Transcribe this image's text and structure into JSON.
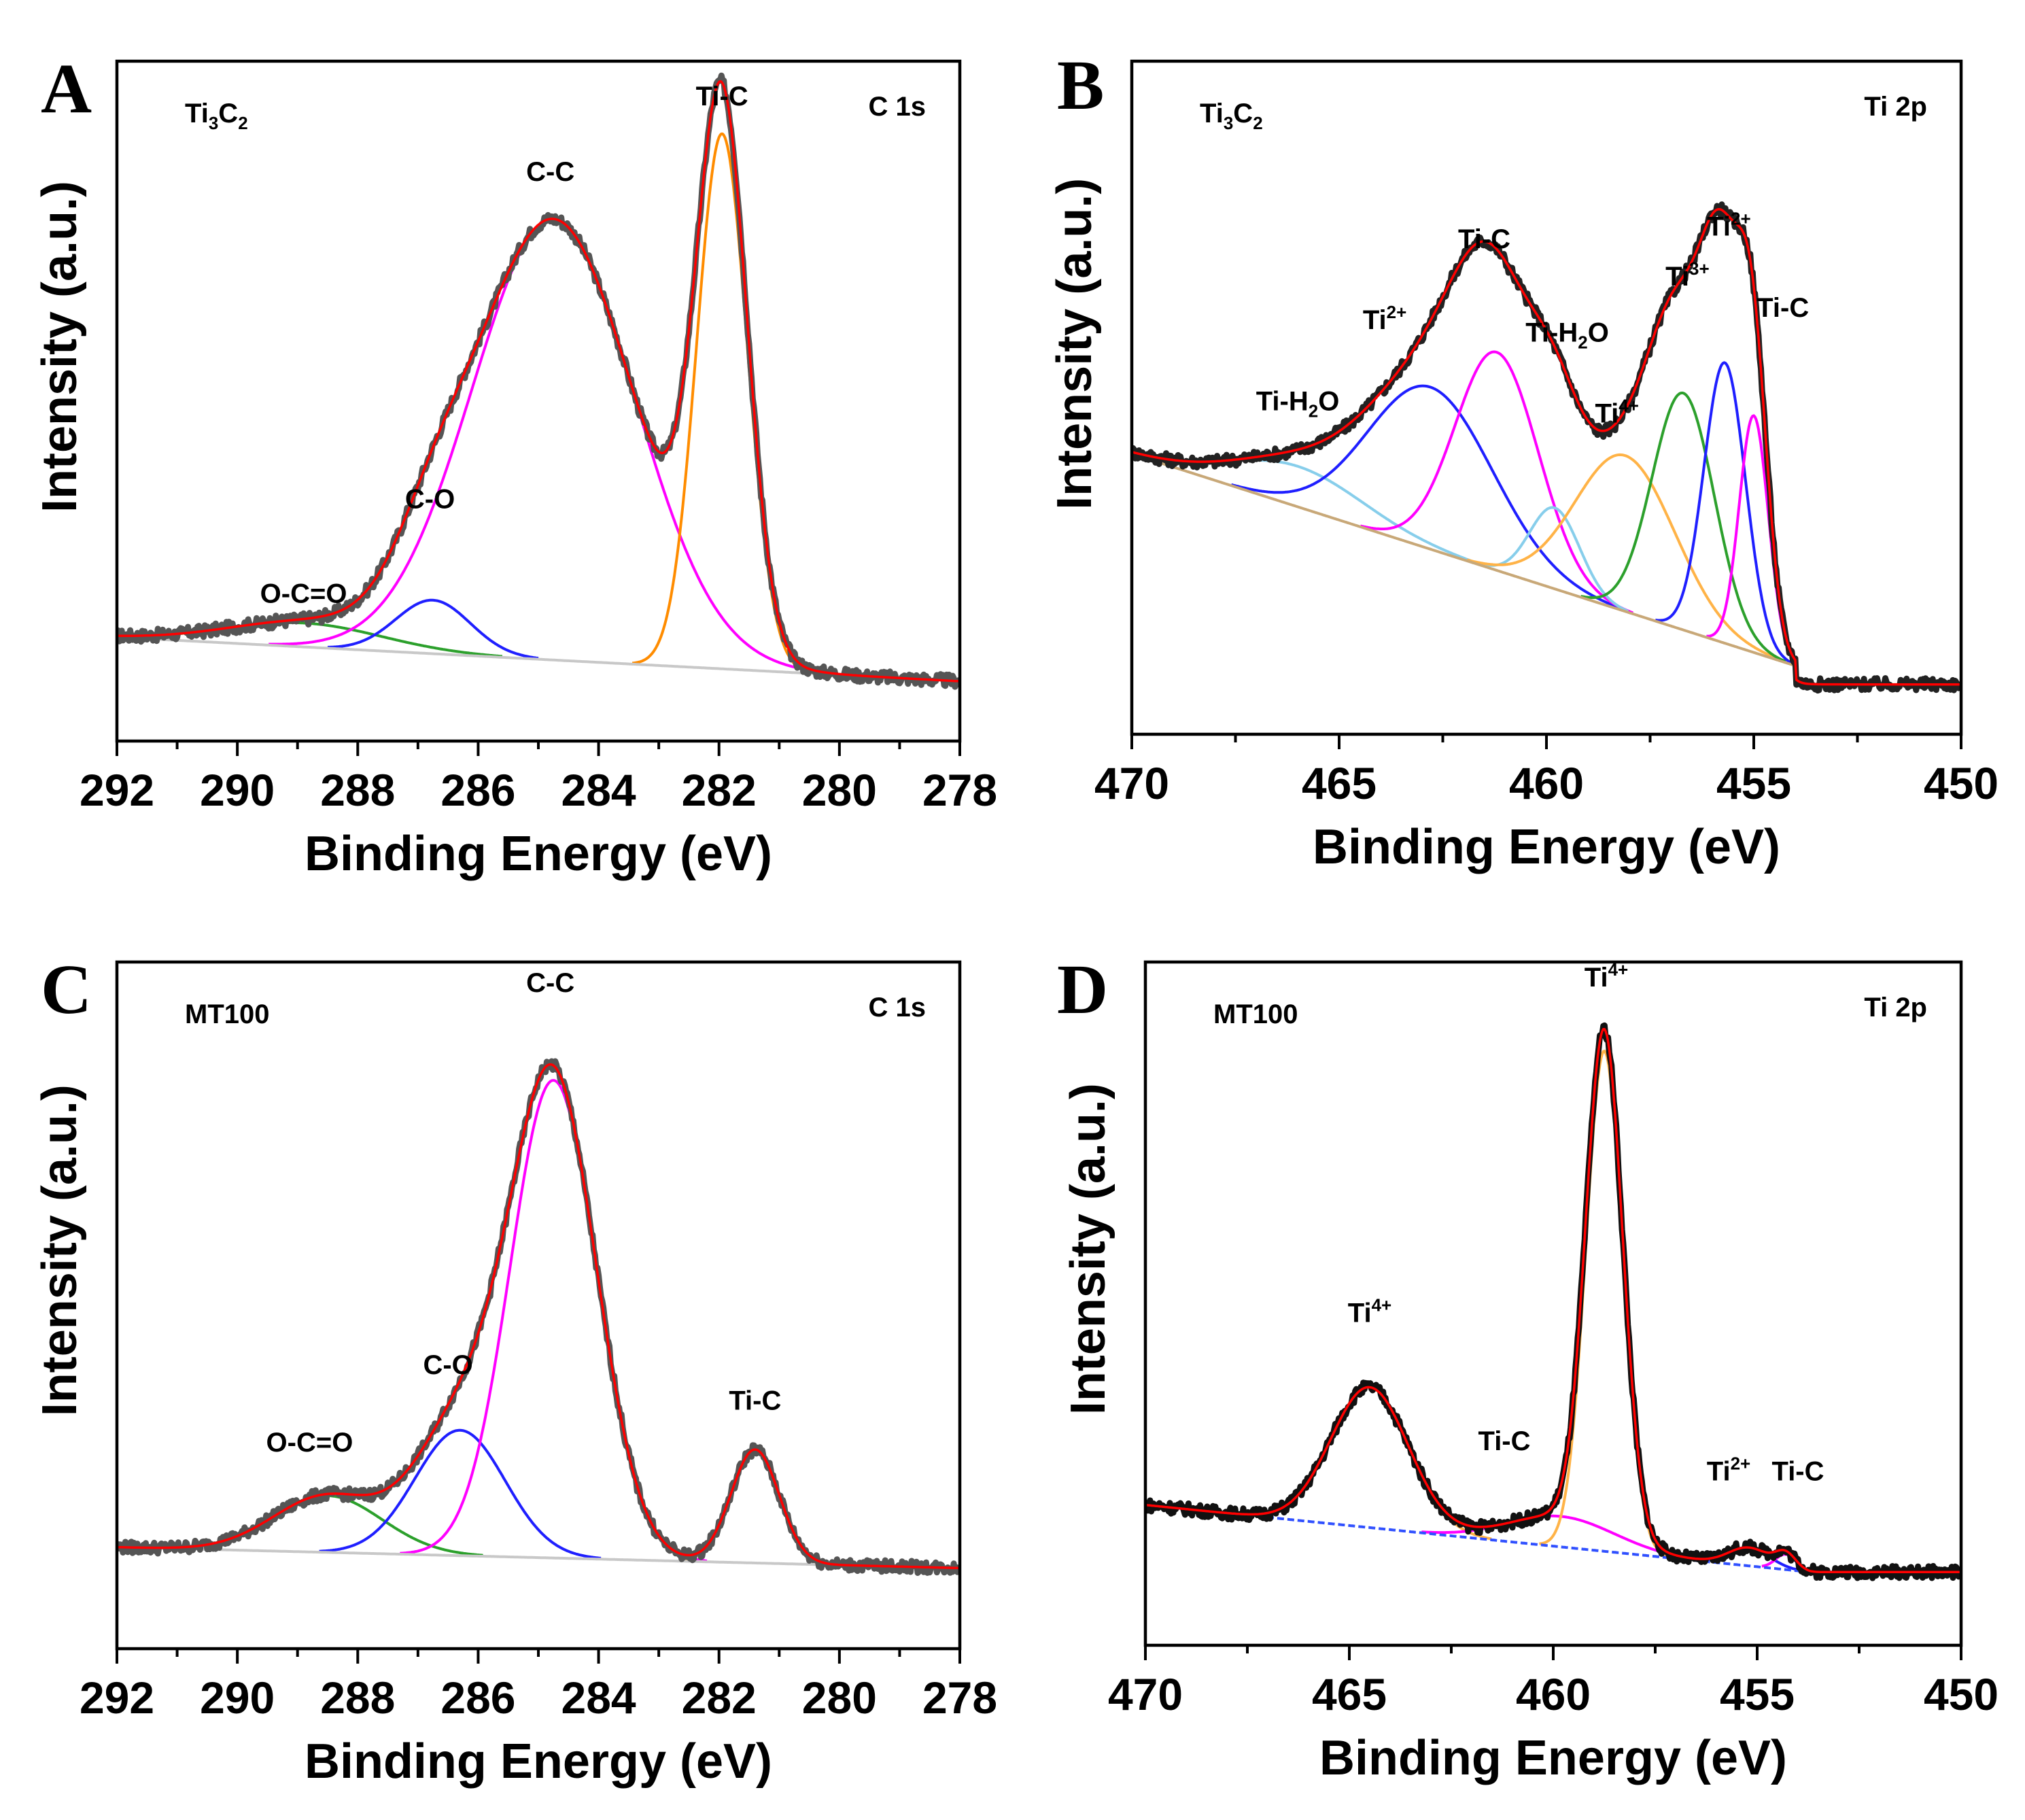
{
  "chart_data": [
    {
      "panel": "A",
      "type": "line",
      "sample_label": "Ti3C2",
      "sample_base": "Ti",
      "sample_sub1": "3",
      "sample_mid": "C",
      "sample_sub2": "2",
      "region_label": "C 1s",
      "xlabel": "Binding Energy (eV)",
      "ylabel": "Intensity (a.u.)",
      "xlim": [
        292,
        278
      ],
      "ylim": [
        -8,
        100
      ],
      "xticks": [
        "292",
        "290",
        "288",
        "286",
        "284",
        "282",
        "280",
        "278"
      ],
      "baseline": {
        "start": 292,
        "end": 278,
        "y_start": 8.5,
        "y_end": 1.5
      },
      "components": [
        {
          "name": "O-C=O",
          "center": 288.9,
          "height": 3.8,
          "width": 1.3,
          "color": "#2ca02c"
        },
        {
          "name": "C-O",
          "center": 286.75,
          "height": 8.5,
          "width": 0.62,
          "color": "#1f1fff"
        },
        {
          "name": "C-C",
          "center": 284.75,
          "height": 70.0,
          "width": 1.35,
          "color": "#ff00ff"
        },
        {
          "name": "Ti-C",
          "center": 281.95,
          "height": 85.0,
          "width": 0.42,
          "color": "#ff8c00"
        }
      ],
      "peak_labels": [
        {
          "text": "O-C=O",
          "x": 288.9,
          "y": 14
        },
        {
          "text": "C-O",
          "x": 286.8,
          "y": 29
        },
        {
          "text": "C-C",
          "x": 284.8,
          "y": 81
        },
        {
          "text": "Ti-C",
          "x": 281.95,
          "y": 93
        }
      ],
      "envelope_color": "#ff0000",
      "raw_color": "#555555",
      "baseline_color": "#c8c8c8"
    },
    {
      "panel": "B",
      "type": "line",
      "sample_label": "Ti3C2",
      "sample_base": "Ti",
      "sample_sub1": "3",
      "sample_mid": "C",
      "sample_sub2": "2",
      "region_label": "Ti 2p",
      "xlabel": "Binding Energy (eV)",
      "ylabel": "Intensity (a.u.)",
      "xlim": [
        470,
        450
      ],
      "ylim": [
        -8,
        100
      ],
      "xticks": [
        "470",
        "465",
        "460",
        "455",
        "450"
      ],
      "baseline": {
        "start": 470,
        "end": 454,
        "y_start": 37.0,
        "y_end": 3.0,
        "flat_to": 450,
        "flat_y": 0.0
      },
      "components": [
        {
          "name": "Ti-H2O",
          "center": 466.0,
          "height": 6.5,
          "width": 1.6,
          "color": "#87ceeb"
        },
        {
          "name": "Ti2+",
          "center": 462.8,
          "height": 26.0,
          "width": 1.5,
          "color": "#1f1fff"
        },
        {
          "name": "Ti-C",
          "center": 461.2,
          "height": 35.0,
          "width": 1.0,
          "color": "#ff00ff"
        },
        {
          "name": "Ti-H2O",
          "center": 459.8,
          "height": 13.0,
          "width": 0.6,
          "color": "#87ceeb"
        },
        {
          "name": "Ti4+",
          "center": 458.1,
          "height": 25.0,
          "width": 1.2,
          "color": "#ffb347"
        },
        {
          "name": "Ti3+",
          "center": 456.7,
          "height": 38.0,
          "width": 0.75,
          "color": "#2ca02c"
        },
        {
          "name": "Ti2+",
          "center": 455.7,
          "height": 45.0,
          "width": 0.5,
          "color": "#1f1fff"
        },
        {
          "name": "Ti-C",
          "center": 455.0,
          "height": 38.0,
          "width": 0.35,
          "color": "#ff00ff"
        }
      ],
      "peak_labels": [
        {
          "text": "Ti-H",
          "sub": "2",
          "tail": "O",
          "x": 466.0,
          "y": 44
        },
        {
          "text": "Ti",
          "sup": "2+",
          "x": 463.9,
          "y": 57
        },
        {
          "text": "Ti-C",
          "x": 461.5,
          "y": 70
        },
        {
          "text": "Ti-H",
          "sub": "2",
          "tail": "O",
          "x": 459.5,
          "y": 55
        },
        {
          "text": "Ti",
          "sup": "4+",
          "x": 458.3,
          "y": 42
        },
        {
          "text": "Ti",
          "sup": "3+",
          "x": 456.6,
          "y": 64
        },
        {
          "text": "Ti",
          "sup": "2+",
          "x": 455.6,
          "y": 72
        },
        {
          "text": "Ti-C",
          "x": 454.3,
          "y": 59
        }
      ],
      "envelope_color": "#ff0000",
      "raw_color": "#222222",
      "baseline_color": "#c8a878"
    },
    {
      "panel": "C",
      "type": "line",
      "sample_label": "MT100",
      "region_label": "C 1s",
      "xlabel": "Binding Energy (eV)",
      "ylabel": "Intensity (a.u.)",
      "xlim": [
        292,
        278
      ],
      "ylim": [
        -15,
        100
      ],
      "xticks": [
        "292",
        "290",
        "288",
        "286",
        "284",
        "282",
        "280",
        "278"
      ],
      "baseline": {
        "start": 292,
        "end": 278,
        "y_start": 2.0,
        "y_end": -1.5
      },
      "components": [
        {
          "name": "O-C=O",
          "center": 288.5,
          "height": 9.5,
          "width": 0.9,
          "color": "#2ca02c"
        },
        {
          "name": "C-O",
          "center": 286.3,
          "height": 21.0,
          "width": 0.75,
          "color": "#1f1fff"
        },
        {
          "name": "C-C",
          "center": 284.75,
          "height": 80.0,
          "width": 0.72,
          "color": "#ff00ff"
        },
        {
          "name": "Ti-C",
          "center": 281.4,
          "height": 19.0,
          "width": 0.4,
          "color": "#ff8c00"
        }
      ],
      "peak_labels": [
        {
          "text": "O-C=O",
          "x": 288.8,
          "y": 18
        },
        {
          "text": "C-O",
          "x": 286.5,
          "y": 31
        },
        {
          "text": "C-C",
          "x": 284.8,
          "y": 95
        },
        {
          "text": "Ti-C",
          "x": 281.4,
          "y": 25
        }
      ],
      "envelope_color": "#ff0000",
      "raw_color": "#555555",
      "baseline_color": "#c8c8c8"
    },
    {
      "panel": "D",
      "type": "line",
      "sample_label": "MT100",
      "region_label": "Ti 2p",
      "xlabel": "Binding Energy (eV)",
      "ylabel": "Intensity (a.u.)",
      "xlim": [
        470,
        450
      ],
      "ylim": [
        -12,
        100
      ],
      "xticks": [
        "470",
        "465",
        "460",
        "455",
        "450"
      ],
      "baseline": {
        "start": 470,
        "end": 453.7,
        "y_start": 11.0,
        "y_end": 0.0,
        "flat_to": 450,
        "flat_y": 0.0
      },
      "components": [
        {
          "name": "Ti4+",
          "center": 464.5,
          "height": 23.0,
          "width": 0.95,
          "color": "#ffb347"
        },
        {
          "name": "Ti-C",
          "center": 459.8,
          "height": 5.0,
          "width": 1.3,
          "color": "#ff00ff"
        },
        {
          "name": "Ti4+",
          "center": 458.75,
          "height": 82.0,
          "width": 0.45,
          "color": "#ffb347"
        },
        {
          "name": "Ti2+",
          "center": 455.2,
          "height": 3.0,
          "width": 0.5,
          "color": "#1f1fff"
        },
        {
          "name": "Ti-C",
          "center": 454.3,
          "height": 2.5,
          "width": 0.25,
          "color": "#ff00ff"
        }
      ],
      "peak_labels": [
        {
          "text": "Ti",
          "sup": "4+",
          "x": 464.5,
          "y": 41
        },
        {
          "text": "Ti-C",
          "x": 461.2,
          "y": 20
        },
        {
          "text": "Ti",
          "sup": "4+",
          "x": 458.7,
          "y": 96
        },
        {
          "text": "Ti",
          "sup": "2+",
          "x": 455.7,
          "y": 15
        },
        {
          "text": "Ti-C",
          "x": 454.0,
          "y": 15
        }
      ],
      "envelope_color": "#ff0000",
      "raw_color": "#111111",
      "baseline_color": "#3050ff"
    }
  ]
}
